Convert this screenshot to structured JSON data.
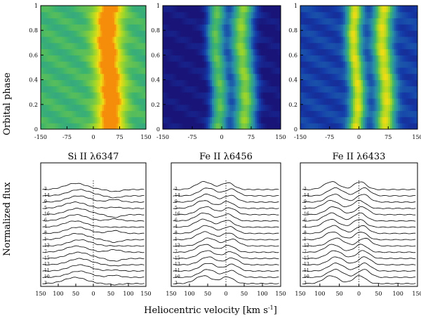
{
  "chart_data": {
    "type": "heatmap",
    "xlabel": "Heliocentric velocity [km s",
    "xlabel_sup": "-1",
    "xlabel_end": "]",
    "ylabel_top": "Orbital phase",
    "ylabel_bottom": "Normalized flux",
    "trailed_spectra": {
      "x_range": [
        -150,
        150
      ],
      "y_range": [
        0,
        1
      ],
      "x_ticks": [
        "-150",
        "-75",
        "0",
        "75",
        "150"
      ],
      "y_ticks": [
        "0",
        "0.2",
        "0.4",
        "0.6",
        "0.8",
        "1"
      ],
      "panels": [
        {
          "line": "Si II 6347",
          "components": [
            {
              "center": 45,
              "width": 40,
              "depth": 0.55
            }
          ],
          "continuum": 0.55
        },
        {
          "line": "Fe II 6456",
          "components": [
            {
              "center": -10,
              "width": 22,
              "depth": 0.6
            },
            {
              "center": 55,
              "width": 28,
              "depth": 0.7
            }
          ],
          "continuum": 0.0
        },
        {
          "line": "Fe II 6433",
          "components": [
            {
              "center": -8,
              "width": 20,
              "depth": 0.7
            },
            {
              "center": 65,
              "width": 24,
              "depth": 0.7
            }
          ],
          "continuum": 0.15
        }
      ]
    },
    "line_profiles": {
      "x_range": [
        150,
        -150
      ],
      "x_ticks": [
        "150",
        "100",
        "50",
        "0",
        "50",
        "100",
        "150"
      ],
      "panels": [
        {
          "title": "Si II λ6347"
        },
        {
          "title": "Fe II λ6456"
        },
        {
          "title": "Fe II λ6433"
        }
      ],
      "phase_labels": [
        "2",
        "14",
        "9",
        "5",
        "16",
        "6",
        "4",
        "8",
        "1",
        "12",
        "7",
        "15",
        "13",
        "11",
        "10",
        "3"
      ]
    }
  }
}
